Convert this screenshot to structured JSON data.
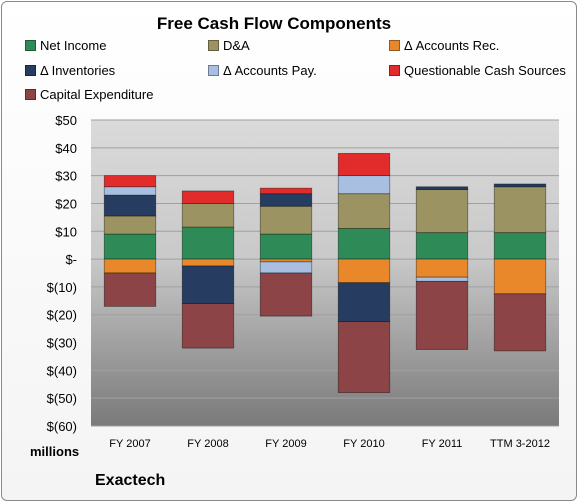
{
  "chart_data": {
    "type": "bar",
    "stacked": true,
    "title": "Free Cash Flow Components",
    "categories": [
      "FY 2007",
      "FY 2008",
      "FY 2009",
      "FY 2010",
      "FY 2011",
      "TTM 3-2012"
    ],
    "y_tick_labels": [
      "$50",
      "$40",
      "$30",
      "$20",
      "$10",
      "$-",
      "$(10)",
      "$(20)",
      "$(30)",
      "$(40)",
      "$(50)",
      "$(60)"
    ],
    "ylim": [
      -60,
      50
    ],
    "ylabel": "millions",
    "grid": true,
    "legend_position": "top",
    "series": [
      {
        "name": "Net Income",
        "color": "#2e8b57",
        "values": [
          9,
          11.5,
          9,
          11,
          9.5,
          9.5
        ]
      },
      {
        "name": "D&A",
        "color": "#9b9361",
        "values": [
          6.5,
          8.5,
          10,
          12.5,
          15.5,
          16.5
        ]
      },
      {
        "name": "Δ Accounts Rec.",
        "color": "#e8882a",
        "values": [
          -5,
          -2.5,
          -1,
          -8.5,
          -6.5,
          -12.5
        ]
      },
      {
        "name": "Δ Inventories",
        "color": "#263c60",
        "values": [
          7.5,
          -13.5,
          4.5,
          -14,
          1,
          1
        ]
      },
      {
        "name": "Δ Accounts Pay.",
        "color": "#a8bfe2",
        "values": [
          3,
          0,
          -4,
          6.5,
          -1.5,
          0
        ]
      },
      {
        "name": "Questionable Cash Sources",
        "color": "#e22c2c",
        "values": [
          4,
          4.5,
          2,
          8,
          0,
          0
        ]
      },
      {
        "name": "Capital Expenditure",
        "color": "#8d4446",
        "values": [
          -12,
          -16,
          -15.5,
          -25.5,
          -24.5,
          -20.5
        ]
      }
    ]
  },
  "footer": {
    "brand": "Exactech"
  }
}
